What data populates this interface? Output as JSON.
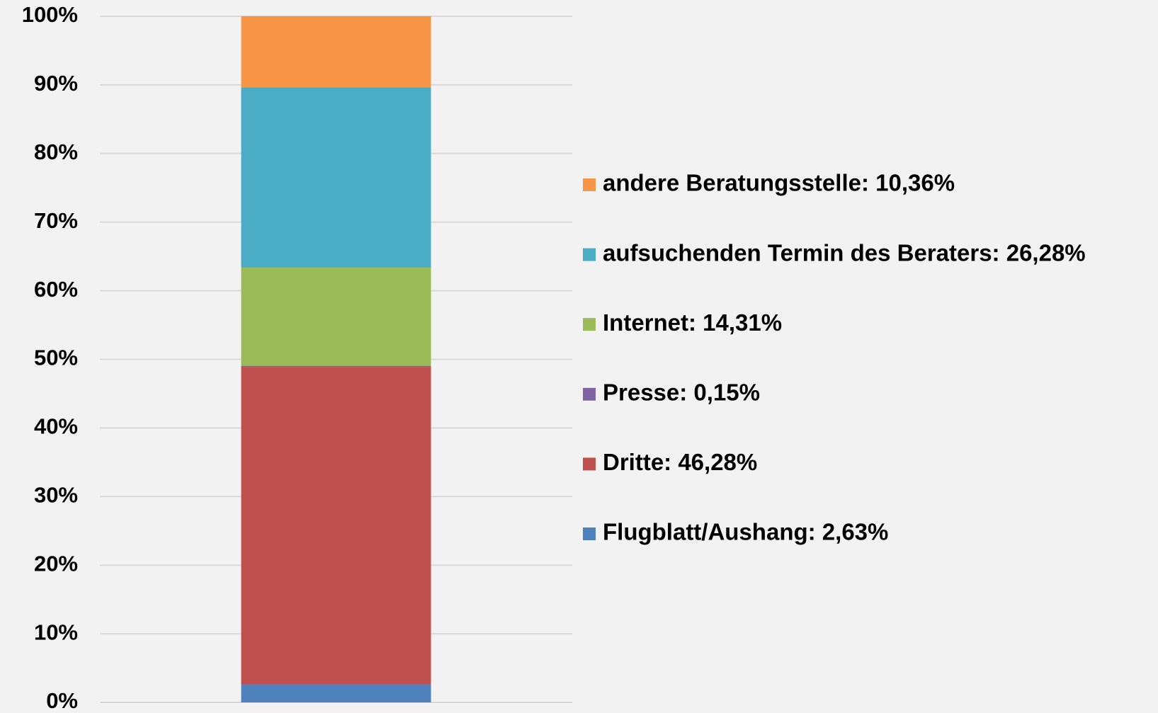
{
  "chart_data": {
    "type": "stacked_bar",
    "categories": [
      null
    ],
    "series": [
      {
        "name": "Flugblatt/Aushang: 2,63%",
        "color": "#4f81bd",
        "values": [
          2.63
        ]
      },
      {
        "name": "Dritte: 46,28%",
        "color": "#c0504d",
        "values": [
          46.28
        ]
      },
      {
        "name": "Presse: 0,15%",
        "color": "#8064a2",
        "values": [
          0.15
        ]
      },
      {
        "name": "Internet: 14,31%",
        "color": "#9bbb59",
        "values": [
          14.31
        ]
      },
      {
        "name": "aufsuchenden Termin des Beraters: 26,28%",
        "color": "#4bacc6",
        "values": [
          26.28
        ]
      },
      {
        "name": "andere Beratungsstelle: 10,36%",
        "color": "#f79646",
        "values": [
          10.36
        ]
      }
    ],
    "ylim": [
      0,
      100
    ],
    "yticks": [
      {
        "value": 0,
        "label": "0%"
      },
      {
        "value": 10,
        "label": "10%"
      },
      {
        "value": 20,
        "label": "20%"
      },
      {
        "value": 30,
        "label": "30%"
      },
      {
        "value": 40,
        "label": "40%"
      },
      {
        "value": 50,
        "label": "50%"
      },
      {
        "value": 60,
        "label": "60%"
      },
      {
        "value": 70,
        "label": "70%"
      },
      {
        "value": 80,
        "label": "80%"
      },
      {
        "value": 90,
        "label": "90%"
      },
      {
        "value": 100,
        "label": "100%"
      }
    ],
    "grid": true,
    "legend": "right"
  }
}
